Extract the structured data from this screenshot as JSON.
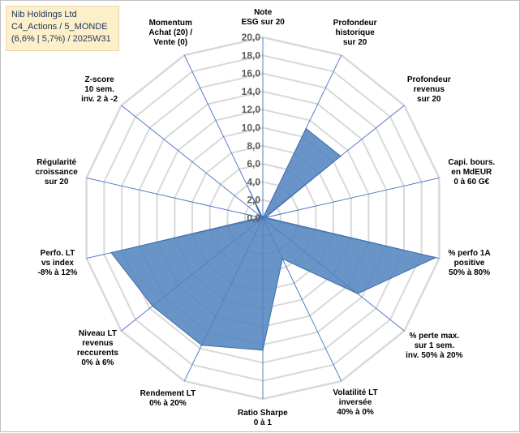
{
  "info_box": {
    "line1": "Nib Holdings Ltd",
    "line2": "C4_Actions / 5_MONDE",
    "line3": "(6,6% | 5,7%) / 2025W31"
  },
  "colors": {
    "fill": "#4f81bd",
    "stroke": "#3f6fa8",
    "grid": "#d9d9d9",
    "axis": "#4472c4"
  },
  "chart_data": {
    "type": "radar",
    "title": "",
    "rlim": [
      0,
      20
    ],
    "ticks": [
      "0,0",
      "2,0",
      "4,0",
      "6,0",
      "8,0",
      "10,0",
      "12,0",
      "14,0",
      "16,0",
      "18,0",
      "20,0"
    ],
    "axes": [
      {
        "label": "Note\nESG sur 20",
        "value": 0
      },
      {
        "label": "Profondeur\nhistorique\nsur 20",
        "value": 11
      },
      {
        "label": "Profondeur\nrevenus\nsur 20",
        "value": 11
      },
      {
        "label": "Capi. bours.\nen MdEUR\n0 à 60 G€",
        "value": 0.3
      },
      {
        "label": "% perfo 1A\npositive\n50% à 80%",
        "value": 19.6
      },
      {
        "label": "% perte max.\nsur 1 sem.\ninv. 50% à 20%",
        "value": 13.4
      },
      {
        "label": "Volatilité LT\ninversée\n40% à 0%",
        "value": 5
      },
      {
        "label": "Ratio Sharpe\n0 à 1",
        "value": 14.6
      },
      {
        "label": "Rendement LT\n0% à 20%",
        "value": 15.6
      },
      {
        "label": "Niveau LT\nrevenus\nreccurents\n0% à 6%",
        "value": 15.6
      },
      {
        "label": "Perfo. LT\nvs index\n-8% à 12%",
        "value": 17.2
      },
      {
        "label": "Régularité\ncroissance\nsur 20",
        "value": 0.3
      },
      {
        "label": "Z-score\n10 sem.\ninv. 2 à -2",
        "value": 0.3
      },
      {
        "label": "Momentum\nAchat (20) /\nVente (0)",
        "value": 3.2
      }
    ]
  }
}
